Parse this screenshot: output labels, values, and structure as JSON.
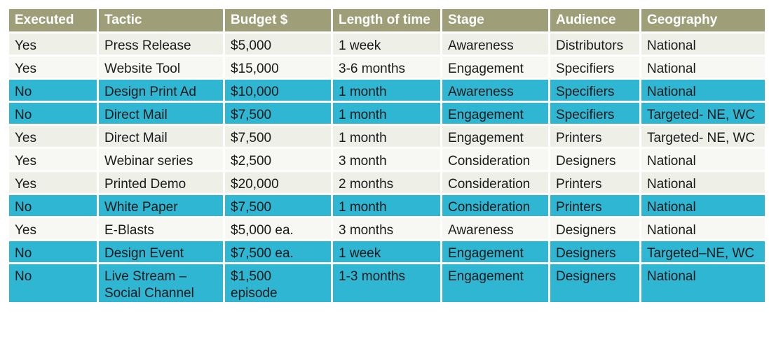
{
  "table": {
    "headers": [
      "Executed",
      "Tactic",
      "Budget $",
      "Length of time",
      "Stage",
      "Audience",
      "Geography"
    ],
    "rows": [
      {
        "executed": "Yes",
        "tactic": "Press Release",
        "budget": "$5,000",
        "length": "1 week",
        "stage": "Awareness",
        "audience": "Distributors",
        "geography": "National"
      },
      {
        "executed": "Yes",
        "tactic": "Website Tool",
        "budget": "$15,000",
        "length": "3-6 months",
        "stage": "Engagement",
        "audience": "Specifiers",
        "geography": "National"
      },
      {
        "executed": "No",
        "tactic": "Design Print Ad",
        "budget": "$10,000",
        "length": "1 month",
        "stage": "Awareness",
        "audience": "Specifiers",
        "geography": "National"
      },
      {
        "executed": "No",
        "tactic": "Direct Mail",
        "budget": "$7,500",
        "length": "1 month",
        "stage": "Engagement",
        "audience": "Specifiers",
        "geography": "Targeted- NE, WC"
      },
      {
        "executed": "Yes",
        "tactic": "Direct Mail",
        "budget": "$7,500",
        "length": "1 month",
        "stage": "Engagement",
        "audience": "Printers",
        "geography": "Targeted- NE, WC"
      },
      {
        "executed": "Yes",
        "tactic": "Webinar series",
        "budget": "$2,500",
        "length": "3 month",
        "stage": "Consideration",
        "audience": "Designers",
        "geography": "National"
      },
      {
        "executed": "Yes",
        "tactic": "Printed Demo",
        "budget": "$20,000",
        "length": "2 months",
        "stage": "Consideration",
        "audience": "Printers",
        "geography": "National"
      },
      {
        "executed": "No",
        "tactic": "White Paper",
        "budget": "$7,500",
        "length": "1 month",
        "stage": "Consideration",
        "audience": "Printers",
        "geography": "National"
      },
      {
        "executed": "Yes",
        "tactic": "E-Blasts",
        "budget": "$5,000 ea.",
        "length": "3 months",
        "stage": "Awareness",
        "audience": "Designers",
        "geography": "National"
      },
      {
        "executed": "No",
        "tactic": "Design Event",
        "budget": "$7,500 ea.",
        "length": "1 week",
        "stage": "Engagement",
        "audience": "Designers",
        "geography": "Targeted–NE, WC"
      },
      {
        "executed": "No",
        "tactic_line1": "Live Stream –",
        "tactic_line2": "Social Channel",
        "budget_line1": "$1,500",
        "budget_line2": "episode",
        "length": "1-3 months",
        "stage": "Engagement",
        "audience": "Designers",
        "geography": "National"
      }
    ]
  },
  "colors": {
    "header_bg": "#9e9f78",
    "header_text": "#ffffff",
    "row_light": "#eef0e8",
    "row_white": "#f7f8f4",
    "row_blue": "#2fb6d3",
    "cell_border": "#ffffff"
  }
}
